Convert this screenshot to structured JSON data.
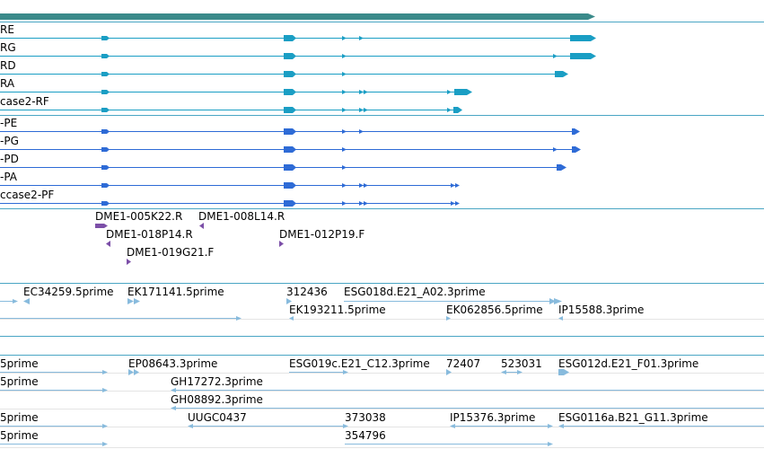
{
  "colors": {
    "gene": "#3a8a8a",
    "transcript": "#1a9ec4",
    "protein": "#2e6bd6",
    "clone": "#7c4fa8",
    "est": "#88bbdd",
    "divider": "#4aa6c4",
    "grid": "#e4e4e4"
  },
  "transcripts": [
    {
      "label": "RE"
    },
    {
      "label": "RG"
    },
    {
      "label": "RD"
    },
    {
      "label": "RA"
    },
    {
      "label": "case2-RF"
    }
  ],
  "proteins": [
    {
      "label": "-PE"
    },
    {
      "label": "-PG"
    },
    {
      "label": "-PD"
    },
    {
      "label": "-PA"
    },
    {
      "label": "ccase2-PF"
    }
  ],
  "clones": [
    {
      "label": "DME1-005K22.R"
    },
    {
      "label": "DME1-008L14.R"
    },
    {
      "label": "DME1-018P14.R"
    },
    {
      "label": "DME1-012P19.F"
    },
    {
      "label": "DME1-019G21.F"
    }
  ],
  "ests": [
    {
      "label": "EC34259.5prime"
    },
    {
      "label": "EK171141.5prime"
    },
    {
      "label": "312436"
    },
    {
      "label": "ESG018d.E21_A02.3prime"
    },
    {
      "label": "EK193211.5prime"
    },
    {
      "label": "EK062856.5prime"
    },
    {
      "label": "IP15588.3prime"
    },
    {
      "label": "5prime"
    },
    {
      "label": "EP08643.3prime"
    },
    {
      "label": "ESG019c.E21_C12.3prime"
    },
    {
      "label": "72407"
    },
    {
      "label": "523031"
    },
    {
      "label": "ESG012d.E21_F01.3prime"
    },
    {
      "label": "5prime"
    },
    {
      "label": "GH17272.3prime"
    },
    {
      "label": "GH08892.3prime"
    },
    {
      "label": "5prime"
    },
    {
      "label": "UUGC0437"
    },
    {
      "label": "373038"
    },
    {
      "label": "IP15376.3prime"
    },
    {
      "label": "ESG0116a.B21_G11.3prime"
    },
    {
      "label": "5prime"
    },
    {
      "label": "354796"
    }
  ]
}
